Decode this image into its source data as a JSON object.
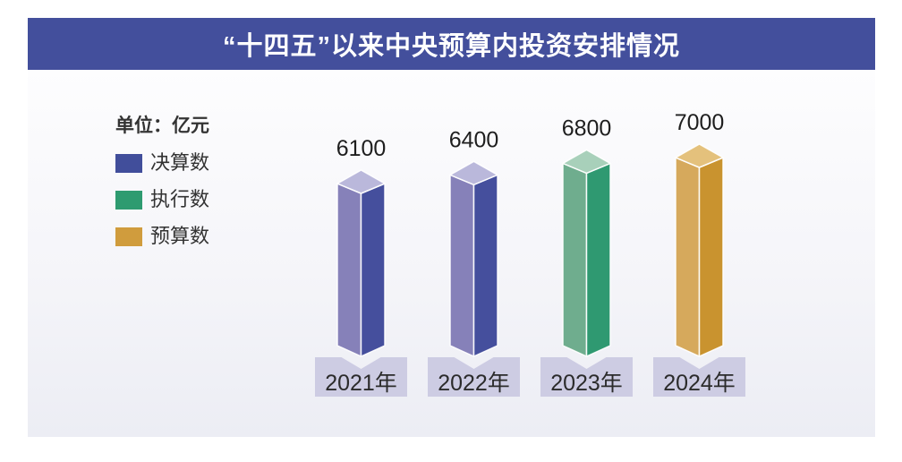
{
  "banner": {
    "title": "“十四五”以来中央预算内投资安排情况",
    "background": "#434F9C",
    "text_color": "#FFFFFF"
  },
  "unit_label": "单位：亿元",
  "legend": {
    "items": [
      {
        "label": "决算数",
        "color": "#414E9B"
      },
      {
        "label": "执行数",
        "color": "#2E9B70"
      },
      {
        "label": "预算数",
        "color": "#D09C3D"
      }
    ]
  },
  "chart_data": {
    "type": "bar",
    "title": "“十四五”以来中央预算内投资安排情况",
    "unit": "亿元",
    "categories": [
      "2021年",
      "2022年",
      "2023年",
      "2024年"
    ],
    "values": [
      6100,
      6400,
      6800,
      7000
    ],
    "series_legend_by_bar": [
      "决算数",
      "决算数",
      "执行数",
      "预算数"
    ],
    "bar_face_colors": [
      {
        "left": "#8681B9",
        "right": "#454F9D",
        "top": "#BAB8DB"
      },
      {
        "left": "#8681B9",
        "right": "#454F9D",
        "top": "#BAB8DB"
      },
      {
        "left": "#6FAD8E",
        "right": "#2F9971",
        "top": "#A8D0BA"
      },
      {
        "left": "#D6A95C",
        "right": "#C9932F",
        "top": "#E4C17C"
      }
    ],
    "value_label_color": "#1E1E1E",
    "category_band_color": "#CDCCE3",
    "category_text_color": "#2B2B2B",
    "legend_position": "left",
    "grid": false,
    "style": "3d-pictorial-columns"
  }
}
